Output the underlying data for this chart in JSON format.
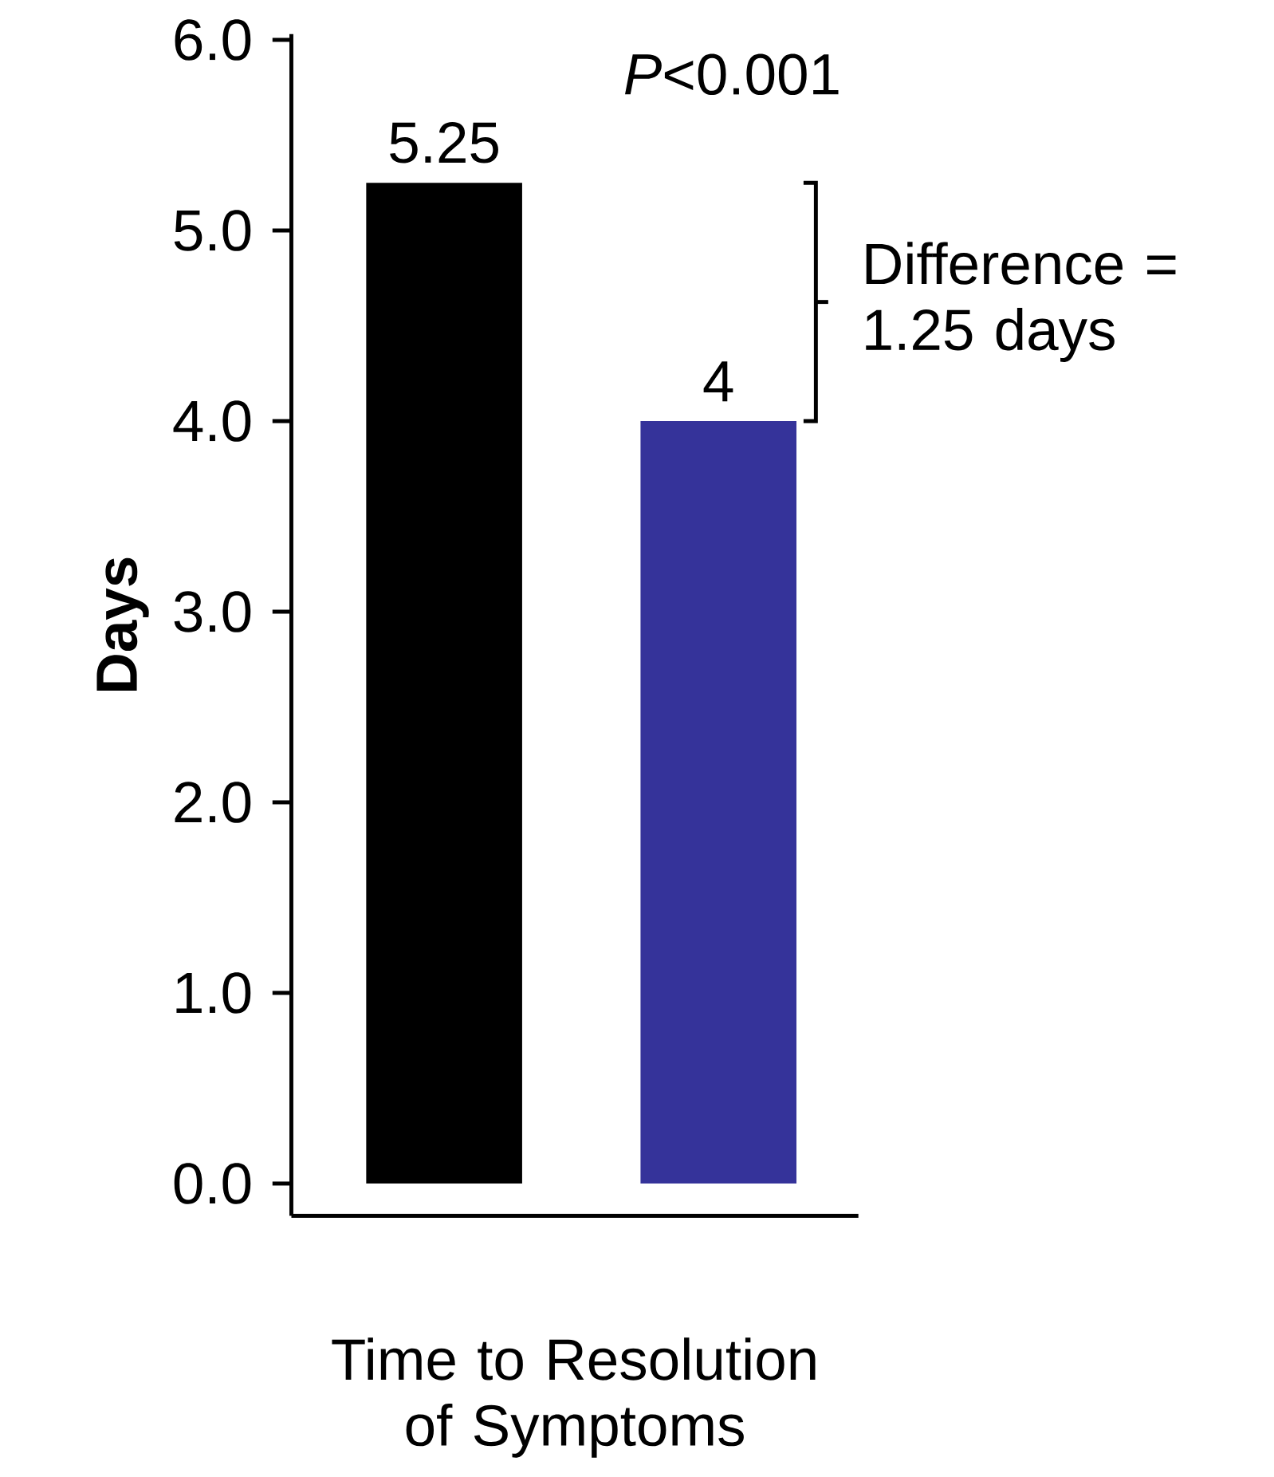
{
  "chart_data": {
    "type": "bar",
    "xlabel": "Time to Resolution of Symptoms",
    "ylabel": "Days",
    "categories": [
      null,
      null
    ],
    "values": [
      5.25,
      4
    ],
    "colors": [
      "#000000",
      "#35339a"
    ],
    "ylim": [
      -0.17,
      6.03
    ],
    "yticks": [
      {
        "value": 0,
        "label": "0.0"
      },
      {
        "value": 1,
        "label": "1.0"
      },
      {
        "value": 2,
        "label": "2.0"
      },
      {
        "value": 3,
        "label": "3.0"
      },
      {
        "value": 4,
        "label": "4.0"
      },
      {
        "value": 5,
        "label": "5.0"
      },
      {
        "value": 6,
        "label": "6.0"
      }
    ],
    "data_labels": true,
    "annotations": [
      "*P*<0.001",
      "Difference = 1.25 days"
    ]
  }
}
